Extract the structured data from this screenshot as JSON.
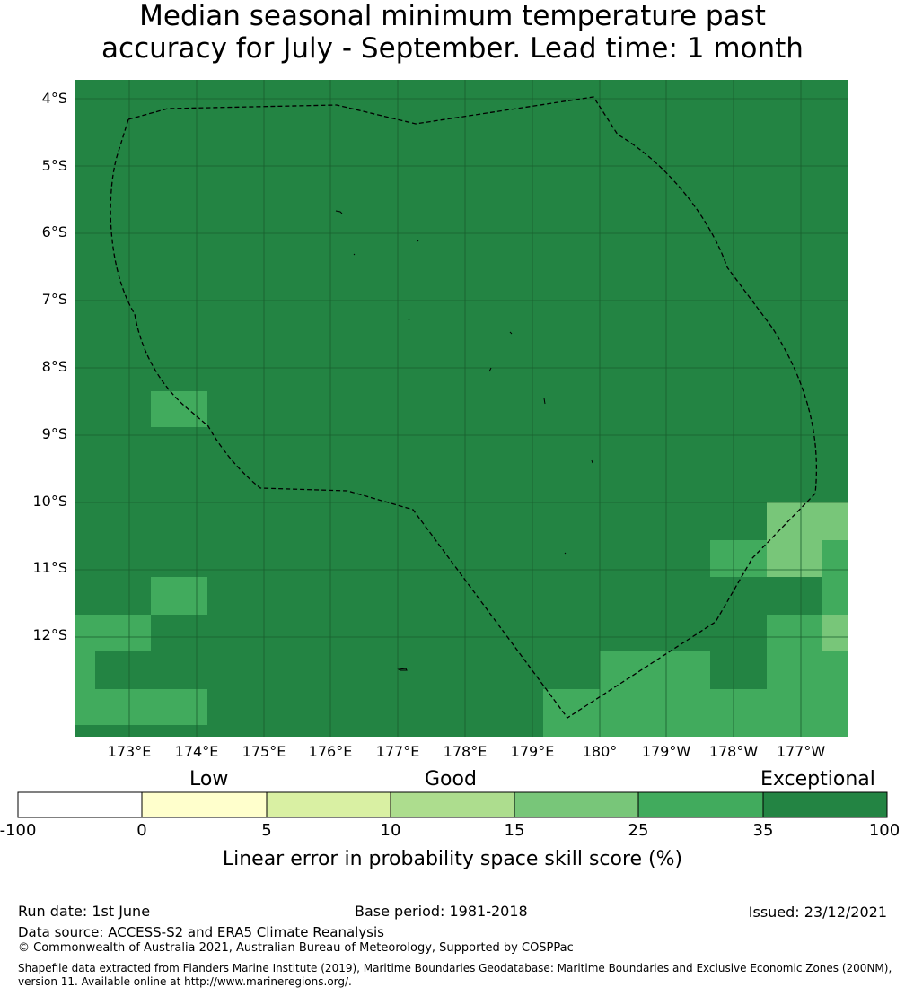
{
  "title_line1": "Median seasonal minimum temperature past",
  "title_line2": "accuracy for July - September. Lead time: 1 month",
  "map": {
    "lat_labels": [
      "4°S",
      "5°S",
      "6°S",
      "7°S",
      "8°S",
      "9°S",
      "10°S",
      "11°S",
      "12°S"
    ],
    "lon_labels": [
      "173°E",
      "174°E",
      "175°E",
      "176°E",
      "177°E",
      "178°E",
      "179°E",
      "180°",
      "179°W",
      "178°W",
      "177°W"
    ],
    "colors": {
      "exceptional": "#238443",
      "very_good": "#41ab5d",
      "good_high": "#78c679",
      "grid": "#1a5e2e",
      "boundary": "#000000"
    }
  },
  "colorbar": {
    "category_labels": [
      "Low",
      "Good",
      "Exceptional"
    ],
    "tick_labels": [
      "-100",
      "0",
      "5",
      "10",
      "15",
      "25",
      "35",
      "100"
    ],
    "segment_colors": [
      "#ffffff",
      "#ffffcc",
      "#d9f0a3",
      "#addd8e",
      "#78c679",
      "#41ab5d",
      "#238443"
    ],
    "title": "Linear error in probability space skill score (%)"
  },
  "footer": {
    "run_date": "Run date: 1st June",
    "base_period": "Base period: 1981-2018",
    "issued": "Issued: 23/12/2021",
    "data_source": "Data source: ACCESS-S2 and ERA5 Climate Reanalysis",
    "copyright": "© Commonwealth of Australia 2021, Australian Bureau of Meteorology, Supported by COSPPac",
    "shapefile_note": "Shapefile data extracted from Flanders Marine Institute (2019), Maritime Boundaries Geodatabase: Maritime Boundaries and Exclusive Economic Zones (200NM), version 11. Available online at http://www.marineregions.org/."
  }
}
